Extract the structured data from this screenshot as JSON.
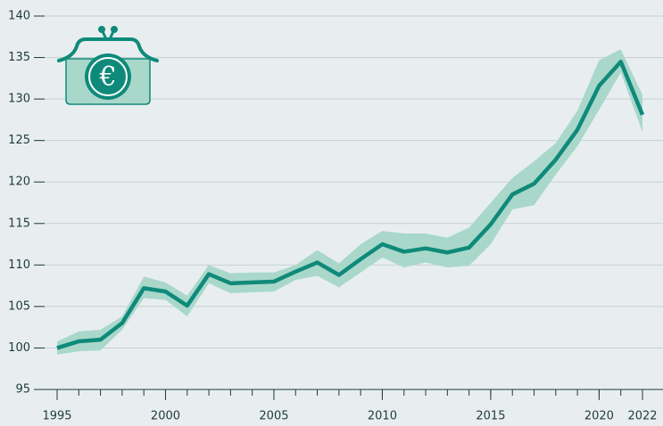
{
  "chart_data": {
    "type": "line",
    "x": [
      1995,
      1996,
      1997,
      1998,
      1999,
      2000,
      2001,
      2002,
      2003,
      2004,
      2005,
      2006,
      2007,
      2008,
      2009,
      2010,
      2011,
      2012,
      2013,
      2014,
      2015,
      2016,
      2017,
      2018,
      2019,
      2020,
      2021,
      2022
    ],
    "values": [
      100,
      100.8,
      101,
      103,
      107.2,
      106.8,
      105.1,
      108.9,
      107.8,
      107.9,
      108,
      109.2,
      110.3,
      108.8,
      110.7,
      112.5,
      111.6,
      112,
      111.5,
      112.1,
      114.9,
      118.5,
      119.8,
      122.7,
      126.3,
      131.6,
      134.5,
      128.1
    ],
    "band_upper": [
      100.8,
      102,
      102.2,
      103.8,
      108.6,
      107.9,
      106.3,
      110,
      109,
      109.1,
      109.1,
      110,
      111.8,
      110.2,
      112.5,
      114.1,
      113.8,
      113.8,
      113.3,
      114.5,
      117.5,
      120.5,
      122.5,
      124.7,
      128.6,
      134.7,
      136,
      130.5
    ],
    "band_lower": [
      99.2,
      99.6,
      99.7,
      102.2,
      106,
      105.8,
      103.8,
      107.8,
      106.6,
      106.7,
      106.8,
      108.2,
      108.7,
      107.3,
      109.1,
      110.9,
      109.7,
      110.3,
      109.7,
      109.9,
      112.5,
      116.7,
      117.2,
      120.9,
      124.3,
      128.7,
      133.2,
      126
    ],
    "color": "#0f8a7a",
    "band_color": "#a9d8cb",
    "xlim": [
      1995,
      2022
    ],
    "xticks": [
      1995,
      2000,
      2005,
      2010,
      2015,
      2020,
      2022
    ],
    "ylim": [
      95,
      140
    ],
    "yticks": [
      95,
      100,
      105,
      110,
      115,
      120,
      125,
      130,
      135,
      140
    ],
    "grid": true,
    "icon_symbol": "€"
  }
}
